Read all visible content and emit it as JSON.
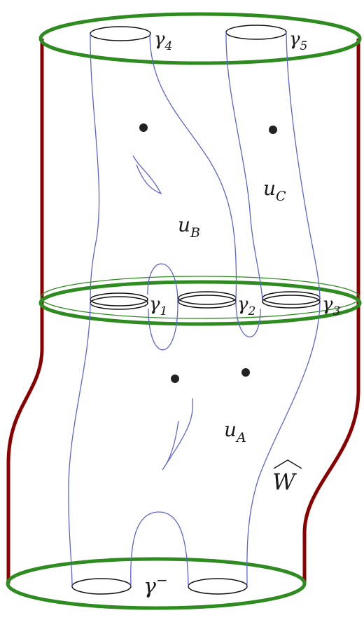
{
  "labels": {
    "gamma4": {
      "base": "γ",
      "sub": "4"
    },
    "gamma5": {
      "base": "γ",
      "sub": "5"
    },
    "gamma1": {
      "base": "γ",
      "sub": "1"
    },
    "gamma2": {
      "base": "γ",
      "sub": "2"
    },
    "gamma3": {
      "base": "γ",
      "sub": "3"
    },
    "gamma_minus": {
      "base": "γ",
      "sup": "−"
    },
    "uB": {
      "base": "u",
      "sub": "B"
    },
    "uC": {
      "base": "u",
      "sub": "C"
    },
    "uA": {
      "base": "u",
      "sub": "A"
    },
    "W": {
      "base": "W",
      "hat": "^"
    }
  },
  "colors": {
    "boundary_circles": "#2e8b1f",
    "side_walls": "#8b0000",
    "curves": "#5b63d6",
    "orbits": "#111111"
  }
}
